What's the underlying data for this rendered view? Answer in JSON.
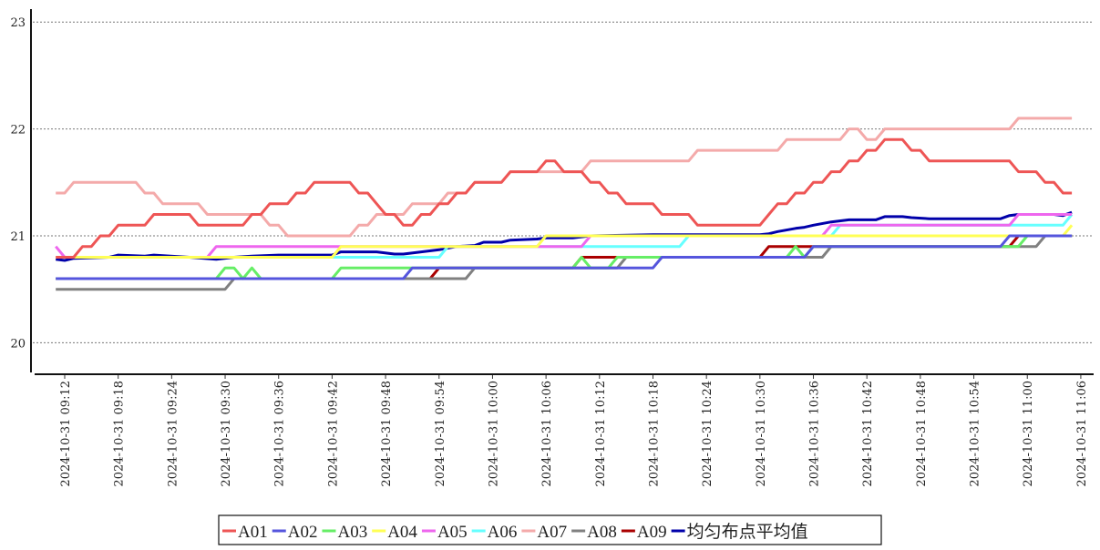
{
  "chart_data": {
    "type": "line",
    "title": "",
    "xlabel": "",
    "ylabel": "",
    "ylim": [
      19.7,
      23.1
    ],
    "yticks": [
      "20",
      "21",
      "22",
      "23"
    ],
    "xtick_labels": [
      "2024-10-31  09:12",
      "2024-10-31  09:18",
      "2024-10-31  09:24",
      "2024-10-31  09:30",
      "2024-10-31  09:36",
      "2024-10-31  09:42",
      "2024-10-31  09:48",
      "2024-10-31  09:54",
      "2024-10-31  10:00",
      "2024-10-31  10:06",
      "2024-10-31  10:12",
      "2024-10-31  10:18",
      "2024-10-31  10:24",
      "2024-10-31  10:30",
      "2024-10-31  10:36",
      "2024-10-31  10:42",
      "2024-10-31  10:48",
      "2024-10-31  10:54",
      "2024-10-31  11:00",
      "2024-10-31  11:06"
    ],
    "grid": "horizontal dotted",
    "legend_position": "bottom-center",
    "series": [
      {
        "name": "A01",
        "color": "#ee5555",
        "points": [
          [
            "09:11",
            20.8
          ],
          [
            "09:13",
            20.8
          ],
          [
            "09:14",
            20.9
          ],
          [
            "09:15",
            20.9
          ],
          [
            "09:16",
            21.0
          ],
          [
            "09:17",
            21.0
          ],
          [
            "09:18",
            21.1
          ],
          [
            "09:21",
            21.1
          ],
          [
            "09:22",
            21.2
          ],
          [
            "09:26",
            21.2
          ],
          [
            "09:27",
            21.1
          ],
          [
            "09:32",
            21.1
          ],
          [
            "09:33",
            21.2
          ],
          [
            "09:34",
            21.2
          ],
          [
            "09:35",
            21.3
          ],
          [
            "09:37",
            21.3
          ],
          [
            "09:38",
            21.4
          ],
          [
            "09:39",
            21.4
          ],
          [
            "09:40",
            21.5
          ],
          [
            "09:44",
            21.5
          ],
          [
            "09:45",
            21.4
          ],
          [
            "09:46",
            21.4
          ],
          [
            "09:47",
            21.3
          ],
          [
            "09:48",
            21.2
          ],
          [
            "09:49",
            21.2
          ],
          [
            "09:50",
            21.1
          ],
          [
            "09:51",
            21.1
          ],
          [
            "09:52",
            21.2
          ],
          [
            "09:53",
            21.2
          ],
          [
            "09:54",
            21.3
          ],
          [
            "09:55",
            21.3
          ],
          [
            "09:56",
            21.4
          ],
          [
            "09:57",
            21.4
          ],
          [
            "09:58",
            21.5
          ],
          [
            "10:01",
            21.5
          ],
          [
            "10:02",
            21.6
          ],
          [
            "10:05",
            21.6
          ],
          [
            "10:06",
            21.7
          ],
          [
            "10:07",
            21.7
          ],
          [
            "10:08",
            21.6
          ],
          [
            "10:10",
            21.6
          ],
          [
            "10:11",
            21.5
          ],
          [
            "10:12",
            21.5
          ],
          [
            "10:13",
            21.4
          ],
          [
            "10:14",
            21.4
          ],
          [
            "10:15",
            21.3
          ],
          [
            "10:18",
            21.3
          ],
          [
            "10:19",
            21.2
          ],
          [
            "10:22",
            21.2
          ],
          [
            "10:23",
            21.1
          ],
          [
            "10:30",
            21.1
          ],
          [
            "10:31",
            21.2
          ],
          [
            "10:32",
            21.3
          ],
          [
            "10:33",
            21.3
          ],
          [
            "10:34",
            21.4
          ],
          [
            "10:35",
            21.4
          ],
          [
            "10:36",
            21.5
          ],
          [
            "10:37",
            21.5
          ],
          [
            "10:38",
            21.6
          ],
          [
            "10:39",
            21.6
          ],
          [
            "10:40",
            21.7
          ],
          [
            "10:41",
            21.7
          ],
          [
            "10:42",
            21.8
          ],
          [
            "10:43",
            21.8
          ],
          [
            "10:44",
            21.9
          ],
          [
            "10:46",
            21.9
          ],
          [
            "10:47",
            21.8
          ],
          [
            "10:48",
            21.8
          ],
          [
            "10:49",
            21.7
          ],
          [
            "10:58",
            21.7
          ],
          [
            "10:59",
            21.6
          ],
          [
            "11:01",
            21.6
          ],
          [
            "11:02",
            21.5
          ],
          [
            "11:03",
            21.5
          ],
          [
            "11:04",
            21.4
          ],
          [
            "11:05",
            21.4
          ]
        ]
      },
      {
        "name": "A02",
        "color": "#5555dd",
        "points": [
          [
            "09:11",
            20.6
          ],
          [
            "09:50",
            20.6
          ],
          [
            "09:51",
            20.7
          ],
          [
            "10:18",
            20.7
          ],
          [
            "10:19",
            20.8
          ],
          [
            "10:35",
            20.8
          ],
          [
            "10:36",
            20.9
          ],
          [
            "10:57",
            20.9
          ],
          [
            "10:58",
            21.0
          ],
          [
            "11:05",
            21.0
          ]
        ]
      },
      {
        "name": "A03",
        "color": "#66ee66",
        "points": [
          [
            "09:11",
            20.6
          ],
          [
            "09:29",
            20.6
          ],
          [
            "09:30",
            20.7
          ],
          [
            "09:31",
            20.7
          ],
          [
            "09:32",
            20.6
          ],
          [
            "09:33",
            20.7
          ],
          [
            "09:34",
            20.6
          ],
          [
            "09:42",
            20.6
          ],
          [
            "09:43",
            20.7
          ],
          [
            "10:09",
            20.7
          ],
          [
            "10:10",
            20.8
          ],
          [
            "10:11",
            20.7
          ],
          [
            "10:13",
            20.7
          ],
          [
            "10:14",
            20.8
          ],
          [
            "10:33",
            20.8
          ],
          [
            "10:34",
            20.9
          ],
          [
            "10:35",
            20.8
          ],
          [
            "10:36",
            20.9
          ],
          [
            "10:59",
            20.9
          ],
          [
            "11:00",
            21.0
          ],
          [
            "11:05",
            21.0
          ]
        ]
      },
      {
        "name": "A04",
        "color": "#ffff55",
        "points": [
          [
            "09:11",
            20.8
          ],
          [
            "09:42",
            20.8
          ],
          [
            "09:43",
            20.9
          ],
          [
            "10:05",
            20.9
          ],
          [
            "10:06",
            21.0
          ],
          [
            "11:04",
            21.0
          ],
          [
            "11:05",
            21.1
          ]
        ]
      },
      {
        "name": "A05",
        "color": "#ee66ee",
        "points": [
          [
            "09:11",
            20.9
          ],
          [
            "09:12",
            20.8
          ],
          [
            "09:28",
            20.8
          ],
          [
            "09:29",
            20.9
          ],
          [
            "10:10",
            20.9
          ],
          [
            "10:11",
            21.0
          ],
          [
            "10:37",
            21.0
          ],
          [
            "10:38",
            21.1
          ],
          [
            "10:58",
            21.1
          ],
          [
            "10:59",
            21.2
          ],
          [
            "11:05",
            21.2
          ]
        ]
      },
      {
        "name": "A06",
        "color": "#66ffff",
        "points": [
          [
            "09:11",
            20.8
          ],
          [
            "09:54",
            20.8
          ],
          [
            "09:55",
            20.9
          ],
          [
            "10:21",
            20.9
          ],
          [
            "10:22",
            21.0
          ],
          [
            "10:38",
            21.0
          ],
          [
            "10:39",
            21.1
          ],
          [
            "11:04",
            21.1
          ],
          [
            "11:05",
            21.2
          ]
        ]
      },
      {
        "name": "A07",
        "color": "#f4aaaa",
        "points": [
          [
            "09:11",
            21.4
          ],
          [
            "09:12",
            21.4
          ],
          [
            "09:13",
            21.5
          ],
          [
            "09:20",
            21.5
          ],
          [
            "09:21",
            21.4
          ],
          [
            "09:22",
            21.4
          ],
          [
            "09:23",
            21.3
          ],
          [
            "09:27",
            21.3
          ],
          [
            "09:28",
            21.2
          ],
          [
            "09:34",
            21.2
          ],
          [
            "09:35",
            21.1
          ],
          [
            "09:36",
            21.1
          ],
          [
            "09:37",
            21.0
          ],
          [
            "09:44",
            21.0
          ],
          [
            "09:45",
            21.1
          ],
          [
            "09:46",
            21.1
          ],
          [
            "09:47",
            21.2
          ],
          [
            "09:50",
            21.2
          ],
          [
            "09:51",
            21.3
          ],
          [
            "09:54",
            21.3
          ],
          [
            "09:55",
            21.4
          ],
          [
            "09:57",
            21.4
          ],
          [
            "09:58",
            21.5
          ],
          [
            "10:01",
            21.5
          ],
          [
            "10:02",
            21.6
          ],
          [
            "10:10",
            21.6
          ],
          [
            "10:11",
            21.7
          ],
          [
            "10:22",
            21.7
          ],
          [
            "10:23",
            21.8
          ],
          [
            "10:32",
            21.8
          ],
          [
            "10:33",
            21.9
          ],
          [
            "10:39",
            21.9
          ],
          [
            "10:40",
            22.0
          ],
          [
            "10:41",
            22.0
          ],
          [
            "10:42",
            21.9
          ],
          [
            "10:43",
            21.9
          ],
          [
            "10:44",
            22.0
          ],
          [
            "10:58",
            22.0
          ],
          [
            "10:59",
            22.1
          ],
          [
            "11:05",
            22.1
          ]
        ]
      },
      {
        "name": "A08",
        "color": "#808080",
        "points": [
          [
            "09:11",
            20.5
          ],
          [
            "09:30",
            20.5
          ],
          [
            "09:31",
            20.6
          ],
          [
            "09:57",
            20.6
          ],
          [
            "09:58",
            20.7
          ],
          [
            "10:14",
            20.7
          ],
          [
            "10:15",
            20.8
          ],
          [
            "10:37",
            20.8
          ],
          [
            "10:38",
            20.9
          ],
          [
            "11:01",
            20.9
          ],
          [
            "11:02",
            21.0
          ],
          [
            "11:05",
            21.0
          ]
        ]
      },
      {
        "name": "A09",
        "color": "#aa0000",
        "points": [
          [
            "09:11",
            20.6
          ],
          [
            "09:53",
            20.6
          ],
          [
            "09:54",
            20.7
          ],
          [
            "10:09",
            20.7
          ],
          [
            "10:10",
            20.8
          ],
          [
            "10:30",
            20.8
          ],
          [
            "10:31",
            20.9
          ],
          [
            "10:58",
            20.9
          ],
          [
            "10:59",
            21.0
          ],
          [
            "11:05",
            21.0
          ]
        ]
      },
      {
        "name": "均匀布点平均值",
        "color": "#0000aa",
        "points": [
          [
            "09:11",
            20.78
          ],
          [
            "09:12",
            20.77
          ],
          [
            "09:13",
            20.79
          ],
          [
            "09:17",
            20.8
          ],
          [
            "09:18",
            20.82
          ],
          [
            "09:21",
            20.81
          ],
          [
            "09:22",
            20.82
          ],
          [
            "09:26",
            20.8
          ],
          [
            "09:29",
            20.78
          ],
          [
            "09:31",
            20.8
          ],
          [
            "09:33",
            20.81
          ],
          [
            "09:36",
            20.82
          ],
          [
            "09:42",
            20.82
          ],
          [
            "09:43",
            20.85
          ],
          [
            "09:47",
            20.85
          ],
          [
            "09:49",
            20.83
          ],
          [
            "09:50",
            20.83
          ],
          [
            "09:52",
            20.85
          ],
          [
            "09:54",
            20.87
          ],
          [
            "09:56",
            20.9
          ],
          [
            "09:58",
            20.91
          ],
          [
            "09:59",
            20.94
          ],
          [
            "10:01",
            20.94
          ],
          [
            "10:02",
            20.96
          ],
          [
            "10:05",
            20.97
          ],
          [
            "10:06",
            20.98
          ],
          [
            "10:09",
            20.98
          ],
          [
            "10:11",
            21.0
          ],
          [
            "10:18",
            21.01
          ],
          [
            "10:30",
            21.01
          ],
          [
            "10:31",
            21.02
          ],
          [
            "10:32",
            21.04
          ],
          [
            "10:34",
            21.07
          ],
          [
            "10:35",
            21.08
          ],
          [
            "10:36",
            21.1
          ],
          [
            "10:38",
            21.13
          ],
          [
            "10:40",
            21.15
          ],
          [
            "10:43",
            21.15
          ],
          [
            "10:44",
            21.18
          ],
          [
            "10:46",
            21.18
          ],
          [
            "10:47",
            21.17
          ],
          [
            "10:49",
            21.16
          ],
          [
            "10:57",
            21.16
          ],
          [
            "10:58",
            21.19
          ],
          [
            "10:59",
            21.2
          ],
          [
            "11:03",
            21.2
          ],
          [
            "11:04",
            21.19
          ],
          [
            "11:05",
            21.22
          ]
        ]
      }
    ]
  }
}
